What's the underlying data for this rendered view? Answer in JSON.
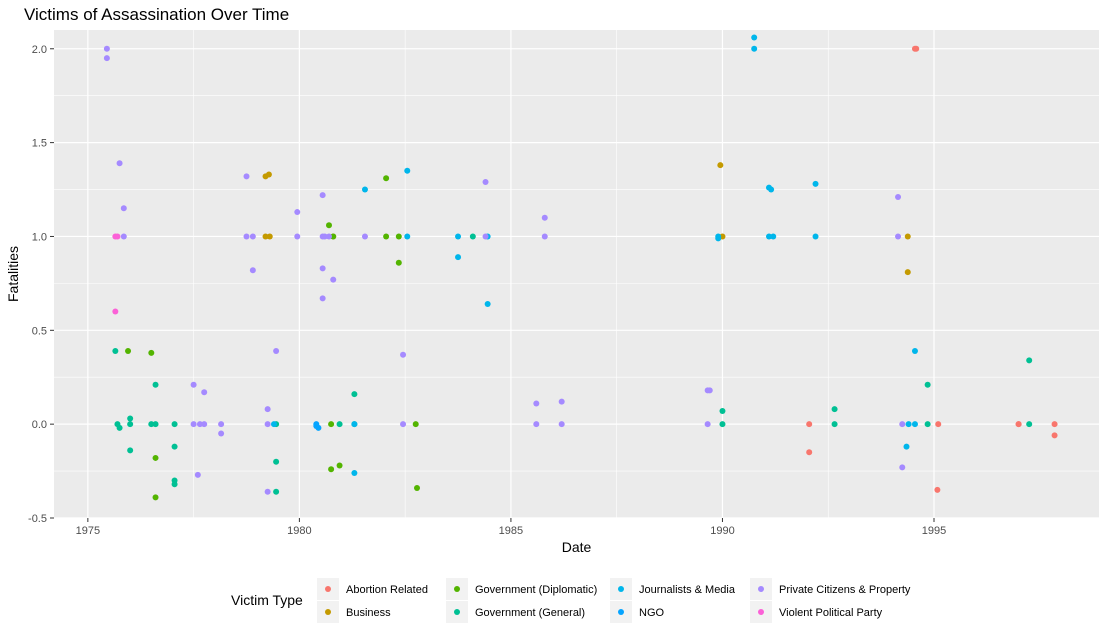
{
  "chart_data": {
    "type": "scatter",
    "title": "Victims of Assassination Over Time",
    "xlabel": "Date",
    "ylabel": "Fatalities",
    "xlim": [
      1974.2,
      1998.9
    ],
    "ylim": [
      -0.5,
      2.1
    ],
    "x_ticks": [
      1975,
      1980,
      1985,
      1990,
      1995
    ],
    "y_ticks": [
      -0.5,
      0.0,
      0.5,
      1.0,
      1.5,
      2.0
    ],
    "x_tick_labels": [
      "1975",
      "1980",
      "1985",
      "1990",
      "1995"
    ],
    "y_tick_labels": [
      "-0.5",
      "0.0",
      "0.5",
      "1.0",
      "1.5",
      "2.0"
    ],
    "grid": true,
    "legend": {
      "title": "Victim Type",
      "position": "bottom"
    },
    "series": [
      {
        "name": "Abortion Related",
        "color": "#F8766D",
        "points": [
          [
            1992.05,
            0.0
          ],
          [
            1992.05,
            -0.15
          ],
          [
            1994.55,
            2.0
          ],
          [
            1994.58,
            2.0
          ],
          [
            1995.1,
            0.0
          ],
          [
            1995.08,
            -0.35
          ],
          [
            1997.0,
            0.0
          ],
          [
            1997.0,
            0.0
          ],
          [
            1997.85,
            0.0
          ],
          [
            1997.85,
            -0.06
          ]
        ]
      },
      {
        "name": "Business",
        "color": "#C49A00",
        "points": [
          [
            1979.2,
            1.32
          ],
          [
            1979.28,
            1.33
          ],
          [
            1979.2,
            1.0
          ],
          [
            1979.3,
            1.0
          ],
          [
            1980.8,
            1.0
          ],
          [
            1989.95,
            1.38
          ],
          [
            1990.0,
            1.0
          ],
          [
            1994.38,
            1.0
          ],
          [
            1994.38,
            0.81
          ]
        ]
      },
      {
        "name": "Government (Diplomatic)",
        "color": "#53B400",
        "points": [
          [
            1980.7,
            1.06
          ],
          [
            1980.8,
            1.0
          ],
          [
            1982.05,
            1.31
          ],
          [
            1982.05,
            1.0
          ],
          [
            1982.35,
            0.86
          ],
          [
            1982.35,
            1.0
          ],
          [
            1980.75,
            0.0
          ],
          [
            1980.75,
            -0.24
          ],
          [
            1980.95,
            -0.22
          ],
          [
            1982.75,
            0.0
          ],
          [
            1982.78,
            -0.34
          ],
          [
            1975.95,
            0.39
          ],
          [
            1976.5,
            0.38
          ],
          [
            1976.6,
            -0.18
          ],
          [
            1976.6,
            -0.39
          ]
        ]
      },
      {
        "name": "Government (General)",
        "color": "#00C094",
        "points": [
          [
            1975.65,
            0.39
          ],
          [
            1975.7,
            0.0
          ],
          [
            1975.75,
            -0.02
          ],
          [
            1976.0,
            0.0
          ],
          [
            1976.0,
            0.03
          ],
          [
            1976.0,
            -0.14
          ],
          [
            1976.6,
            0.21
          ],
          [
            1976.6,
            0.0
          ],
          [
            1976.5,
            0.0
          ],
          [
            1977.05,
            0.0
          ],
          [
            1977.05,
            -0.12
          ],
          [
            1977.05,
            -0.3
          ],
          [
            1977.05,
            -0.32
          ],
          [
            1979.45,
            0.0
          ],
          [
            1979.45,
            -0.2
          ],
          [
            1979.45,
            -0.36
          ],
          [
            1980.95,
            0.0
          ],
          [
            1981.3,
            0.16
          ],
          [
            1981.3,
            0.0
          ],
          [
            1984.1,
            1.0
          ],
          [
            1990.0,
            0.07
          ],
          [
            1990.0,
            0.0
          ],
          [
            1992.65,
            0.08
          ],
          [
            1992.65,
            0.0
          ],
          [
            1994.85,
            0.21
          ],
          [
            1994.85,
            0.0
          ],
          [
            1997.25,
            0.34
          ],
          [
            1997.25,
            0.0
          ]
        ]
      },
      {
        "name": "Journalists & Media",
        "color": "#00B6EB",
        "points": [
          [
            1981.55,
            1.25
          ],
          [
            1982.55,
            1.35
          ],
          [
            1982.55,
            1.0
          ],
          [
            1983.75,
            1.0
          ],
          [
            1983.75,
            0.89
          ],
          [
            1984.45,
            1.0
          ],
          [
            1984.45,
            0.64
          ],
          [
            1981.3,
            0.0
          ],
          [
            1981.3,
            -0.26
          ],
          [
            1990.75,
            2.06
          ],
          [
            1990.75,
            2.0
          ],
          [
            1989.9,
            1.0
          ],
          [
            1989.9,
            0.99
          ],
          [
            1991.1,
            1.26
          ],
          [
            1991.15,
            1.25
          ],
          [
            1991.1,
            1.0
          ],
          [
            1991.2,
            1.0
          ],
          [
            1992.2,
            1.28
          ],
          [
            1992.2,
            1.0
          ],
          [
            1994.55,
            0.39
          ],
          [
            1994.55,
            0.0
          ],
          [
            1994.4,
            0.0
          ],
          [
            1994.35,
            -0.12
          ],
          [
            1979.4,
            0.0
          ]
        ]
      },
      {
        "name": "NGO",
        "color": "#06A4FF",
        "points": [
          [
            1980.4,
            0.0
          ],
          [
            1980.4,
            -0.01
          ],
          [
            1980.45,
            -0.02
          ]
        ]
      },
      {
        "name": "Private Citizens & Property",
        "color": "#A58AFF",
        "points": [
          [
            1975.45,
            2.0
          ],
          [
            1975.45,
            1.95
          ],
          [
            1975.75,
            1.39
          ],
          [
            1975.85,
            1.15
          ],
          [
            1975.85,
            1.0
          ],
          [
            1977.5,
            0.21
          ],
          [
            1977.5,
            0.0
          ],
          [
            1977.65,
            0.0
          ],
          [
            1977.75,
            0.17
          ],
          [
            1977.75,
            0.0
          ],
          [
            1978.15,
            0.0
          ],
          [
            1978.15,
            -0.05
          ],
          [
            1977.6,
            -0.27
          ],
          [
            1978.75,
            1.32
          ],
          [
            1978.75,
            1.0
          ],
          [
            1978.9,
            1.0
          ],
          [
            1978.9,
            0.82
          ],
          [
            1979.25,
            0.08
          ],
          [
            1979.25,
            0.0
          ],
          [
            1979.25,
            -0.36
          ],
          [
            1979.45,
            0.39
          ],
          [
            1979.95,
            1.13
          ],
          [
            1979.95,
            1.0
          ],
          [
            1980.55,
            1.22
          ],
          [
            1980.55,
            1.0
          ],
          [
            1980.6,
            1.0
          ],
          [
            1980.7,
            1.0
          ],
          [
            1980.55,
            0.83
          ],
          [
            1980.8,
            0.77
          ],
          [
            1980.55,
            0.67
          ],
          [
            1981.55,
            1.0
          ],
          [
            1982.45,
            0.37
          ],
          [
            1982.45,
            0.0
          ],
          [
            1984.4,
            1.29
          ],
          [
            1984.4,
            1.0
          ],
          [
            1985.8,
            1.1
          ],
          [
            1985.8,
            1.0
          ],
          [
            1985.6,
            0.11
          ],
          [
            1985.6,
            0.0
          ],
          [
            1986.2,
            0.12
          ],
          [
            1986.2,
            0.0
          ],
          [
            1989.65,
            0.18
          ],
          [
            1989.7,
            0.18
          ],
          [
            1989.65,
            0.0
          ],
          [
            1994.15,
            1.21
          ],
          [
            1994.15,
            1.0
          ],
          [
            1994.25,
            0.0
          ],
          [
            1994.25,
            -0.23
          ]
        ]
      },
      {
        "name": "Violent Political Party",
        "color": "#FB61D7",
        "points": [
          [
            1975.65,
            1.0
          ],
          [
            1975.7,
            1.0
          ],
          [
            1975.65,
            0.6
          ]
        ]
      }
    ]
  }
}
